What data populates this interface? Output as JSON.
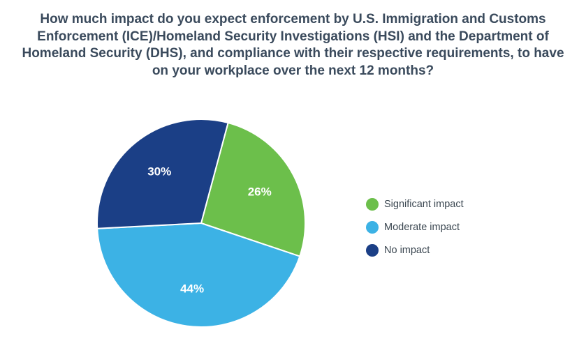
{
  "chart_data": {
    "type": "pie",
    "title": "How much impact do you expect enforcement by U.S. Immigration and Customs Enforcement (ICE)/Homeland Security Investigations (HSI) and the Department of Homeland Security (DHS), and compliance with their respective requirements, to have on your workplace over the next 12 months?",
    "slices": [
      {
        "label": "Significant impact",
        "value": 26,
        "display": "26%",
        "color": "#6cbf4b"
      },
      {
        "label": "Moderate impact",
        "value": 44,
        "display": "44%",
        "color": "#3cb2e5"
      },
      {
        "label": "No impact",
        "value": 30,
        "display": "30%",
        "color": "#1b3f86"
      }
    ],
    "legend_position": "right"
  }
}
